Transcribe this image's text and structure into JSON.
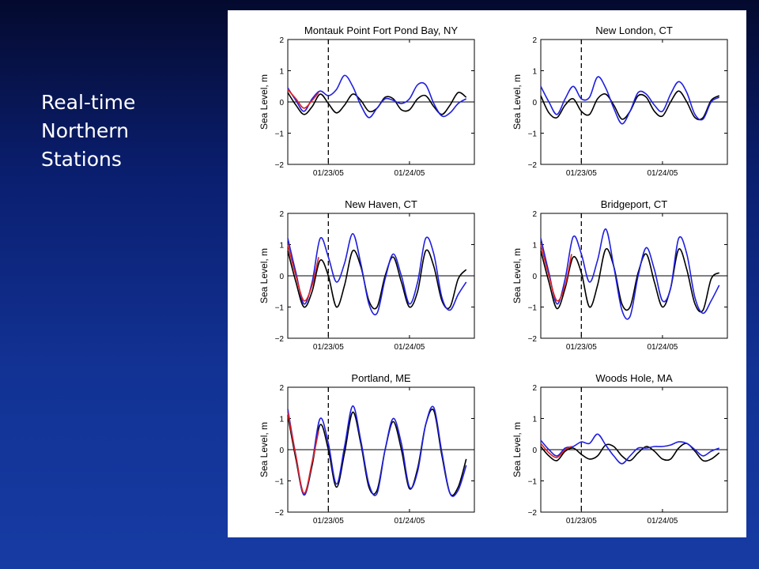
{
  "slide": {
    "title_lines": [
      "Real-time",
      "Northern",
      "Stations"
    ]
  },
  "colors": {
    "background": "#123294",
    "observed": "#1f1fe0",
    "forecast": "#e02020",
    "predicted": "#000000"
  },
  "chart_data": [
    {
      "type": "line",
      "title": "Montauk Point Fort Pond Bay, NY",
      "ylabel": "Sea Level, m",
      "ylim": [
        -2,
        2
      ],
      "yticks": [
        "2",
        "1",
        "0",
        "−1",
        "−2"
      ],
      "xticks": [
        "01/23/05",
        "01/24/05"
      ],
      "now_marker": "01/23/05",
      "series": [
        {
          "color": "#000000",
          "x": [
            0.0,
            0.1,
            0.2,
            0.3,
            0.4,
            0.5,
            0.6,
            0.7,
            0.8,
            0.9,
            1.0,
            1.1,
            1.2,
            1.3,
            1.4,
            1.5,
            1.6,
            1.7,
            1.8,
            1.9,
            2.0,
            2.1,
            2.2
          ],
          "y": [
            0.3,
            -0.1,
            -0.4,
            -0.15,
            0.25,
            -0.05,
            -0.35,
            -0.1,
            0.25,
            0.05,
            -0.3,
            -0.2,
            0.15,
            0.1,
            -0.25,
            -0.25,
            0.1,
            0.2,
            -0.15,
            -0.4,
            -0.1,
            0.3,
            0.15
          ]
        },
        {
          "color": "#1f1fe0",
          "x": [
            0.0,
            0.1,
            0.2,
            0.3,
            0.4,
            0.5,
            0.6,
            0.7,
            0.8,
            0.9,
            1.0,
            1.1,
            1.2,
            1.3,
            1.4,
            1.5,
            1.6,
            1.7,
            1.8,
            1.9,
            2.0,
            2.1,
            2.2
          ],
          "y": [
            0.45,
            0.05,
            -0.3,
            0.1,
            0.35,
            0.2,
            0.4,
            0.85,
            0.5,
            -0.1,
            -0.5,
            -0.2,
            0.1,
            0.05,
            -0.05,
            0.1,
            0.55,
            0.55,
            -0.05,
            -0.45,
            -0.35,
            -0.05,
            0.1
          ]
        },
        {
          "color": "#e02020",
          "x": [
            0.0,
            0.1,
            0.2,
            0.3,
            0.38
          ],
          "y": [
            0.4,
            0.1,
            -0.2,
            0.05,
            0.3
          ]
        }
      ]
    },
    {
      "type": "line",
      "title": "New London, CT",
      "ylabel": "Sea Level, m",
      "ylim": [
        -2,
        2
      ],
      "yticks": [
        "2",
        "1",
        "0",
        "−1",
        "−2"
      ],
      "xticks": [
        "01/23/05",
        "01/24/05"
      ],
      "now_marker": "01/23/05",
      "series": [
        {
          "color": "#000000",
          "x": [
            0.0,
            0.1,
            0.2,
            0.3,
            0.4,
            0.5,
            0.6,
            0.7,
            0.8,
            0.9,
            1.0,
            1.1,
            1.2,
            1.3,
            1.4,
            1.5,
            1.6,
            1.7,
            1.8,
            1.9,
            2.0,
            2.1,
            2.2
          ],
          "y": [
            0.2,
            -0.35,
            -0.5,
            -0.1,
            0.1,
            -0.3,
            -0.4,
            0.1,
            0.25,
            -0.1,
            -0.55,
            -0.3,
            0.2,
            0.15,
            -0.3,
            -0.45,
            0.0,
            0.35,
            0.0,
            -0.5,
            -0.5,
            0.05,
            0.2
          ]
        },
        {
          "color": "#1f1fe0",
          "x": [
            0.0,
            0.1,
            0.2,
            0.3,
            0.4,
            0.5,
            0.6,
            0.7,
            0.8,
            0.9,
            1.0,
            1.1,
            1.2,
            1.3,
            1.4,
            1.5,
            1.6,
            1.7,
            1.8,
            1.9,
            2.0,
            2.1,
            2.2
          ],
          "y": [
            0.5,
            0.0,
            -0.4,
            0.1,
            0.5,
            0.1,
            0.15,
            0.8,
            0.45,
            -0.2,
            -0.7,
            -0.3,
            0.3,
            0.25,
            -0.1,
            -0.3,
            0.25,
            0.65,
            0.3,
            -0.4,
            -0.55,
            0.0,
            0.15
          ]
        }
      ]
    },
    {
      "type": "line",
      "title": "New Haven, CT",
      "ylabel": "Sea Level, m",
      "ylim": [
        -2,
        2
      ],
      "yticks": [
        "2",
        "1",
        "0",
        "−1",
        "−2"
      ],
      "xticks": [
        "01/23/05",
        "01/24/05"
      ],
      "now_marker": "01/23/05",
      "series": [
        {
          "color": "#000000",
          "x": [
            0.0,
            0.1,
            0.2,
            0.3,
            0.4,
            0.5,
            0.6,
            0.7,
            0.8,
            0.9,
            1.0,
            1.1,
            1.2,
            1.3,
            1.4,
            1.5,
            1.6,
            1.7,
            1.8,
            1.9,
            2.0,
            2.1,
            2.2
          ],
          "y": [
            0.8,
            -0.2,
            -1.0,
            -0.5,
            0.5,
            0.0,
            -1.0,
            -0.3,
            0.8,
            0.3,
            -0.8,
            -1.0,
            0.0,
            0.6,
            -0.2,
            -1.0,
            -0.5,
            0.8,
            0.3,
            -0.8,
            -1.0,
            -0.1,
            0.2
          ]
        },
        {
          "color": "#1f1fe0",
          "x": [
            0.0,
            0.1,
            0.2,
            0.3,
            0.4,
            0.5,
            0.6,
            0.7,
            0.8,
            0.9,
            1.0,
            1.1,
            1.2,
            1.3,
            1.4,
            1.5,
            1.6,
            1.7,
            1.8,
            1.9,
            2.0,
            2.1,
            2.2
          ],
          "y": [
            1.2,
            0.1,
            -0.9,
            -0.2,
            1.2,
            0.6,
            -0.2,
            0.4,
            1.35,
            0.4,
            -0.9,
            -1.2,
            -0.1,
            0.7,
            0.0,
            -0.9,
            -0.2,
            1.2,
            0.7,
            -0.7,
            -1.1,
            -0.6,
            -0.2
          ]
        },
        {
          "color": "#e02020",
          "x": [
            0.0,
            0.1,
            0.2,
            0.3,
            0.38
          ],
          "y": [
            1.0,
            0.0,
            -0.8,
            -0.3,
            0.6
          ]
        }
      ]
    },
    {
      "type": "line",
      "title": "Bridgeport, CT",
      "ylabel": "Sea Level, m",
      "ylim": [
        -2,
        2
      ],
      "yticks": [
        "2",
        "1",
        "0",
        "−1",
        "−2"
      ],
      "xticks": [
        "01/23/05",
        "01/24/05"
      ],
      "now_marker": "01/23/05",
      "series": [
        {
          "color": "#000000",
          "x": [
            0.0,
            0.1,
            0.2,
            0.3,
            0.4,
            0.5,
            0.6,
            0.7,
            0.8,
            0.9,
            1.0,
            1.1,
            1.2,
            1.3,
            1.4,
            1.5,
            1.6,
            1.7,
            1.8,
            1.9,
            2.0,
            2.1,
            2.2
          ],
          "y": [
            0.8,
            -0.2,
            -1.05,
            -0.4,
            0.6,
            0.1,
            -1.0,
            -0.3,
            0.85,
            0.3,
            -0.9,
            -1.0,
            0.1,
            0.7,
            -0.2,
            -1.0,
            -0.4,
            0.85,
            0.2,
            -0.9,
            -1.1,
            -0.1,
            0.1
          ]
        },
        {
          "color": "#1f1fe0",
          "x": [
            0.0,
            0.1,
            0.2,
            0.3,
            0.4,
            0.5,
            0.6,
            0.7,
            0.8,
            0.9,
            1.0,
            1.1,
            1.2,
            1.3,
            1.4,
            1.5,
            1.6,
            1.7,
            1.8,
            1.9,
            2.0,
            2.1,
            2.2
          ],
          "y": [
            1.2,
            0.1,
            -0.9,
            -0.1,
            1.25,
            0.7,
            -0.2,
            0.5,
            1.5,
            0.3,
            -1.1,
            -1.3,
            0.0,
            0.9,
            0.2,
            -0.8,
            -0.4,
            1.2,
            0.7,
            -0.7,
            -1.2,
            -0.8,
            -0.3
          ]
        },
        {
          "color": "#e02020",
          "x": [
            0.0,
            0.1,
            0.2,
            0.3,
            0.38
          ],
          "y": [
            1.0,
            0.0,
            -0.8,
            -0.3,
            0.7
          ]
        }
      ]
    },
    {
      "type": "line",
      "title": "Portland, ME",
      "ylabel": "Sea Level, m",
      "ylim": [
        -2,
        2
      ],
      "yticks": [
        "2",
        "1",
        "0",
        "−1",
        "−2"
      ],
      "xticks": [
        "01/23/05",
        "01/24/05"
      ],
      "now_marker": "01/23/05",
      "series": [
        {
          "color": "#000000",
          "x": [
            0.0,
            0.1,
            0.2,
            0.3,
            0.4,
            0.5,
            0.6,
            0.7,
            0.8,
            0.9,
            1.0,
            1.1,
            1.2,
            1.3,
            1.4,
            1.5,
            1.6,
            1.7,
            1.8,
            1.9,
            2.0,
            2.1,
            2.2
          ],
          "y": [
            1.1,
            -0.3,
            -1.45,
            -0.5,
            0.8,
            0.0,
            -1.2,
            -0.1,
            1.2,
            0.2,
            -1.2,
            -1.3,
            0.0,
            0.9,
            0.0,
            -1.25,
            -0.6,
            0.8,
            1.25,
            -0.2,
            -1.4,
            -1.2,
            -0.3
          ]
        },
        {
          "color": "#1f1fe0",
          "x": [
            0.0,
            0.1,
            0.2,
            0.3,
            0.4,
            0.5,
            0.6,
            0.7,
            0.8,
            0.9,
            1.0,
            1.1,
            1.2,
            1.3,
            1.4,
            1.5,
            1.6,
            1.7,
            1.8,
            1.9,
            2.0,
            2.1,
            2.2
          ],
          "y": [
            1.3,
            -0.2,
            -1.45,
            -0.4,
            1.0,
            0.2,
            -1.1,
            0.1,
            1.4,
            0.3,
            -1.1,
            -1.4,
            0.0,
            1.0,
            0.2,
            -1.2,
            -0.7,
            0.8,
            1.35,
            -0.1,
            -1.4,
            -1.3,
            -0.5
          ]
        },
        {
          "color": "#e02020",
          "x": [
            0.0,
            0.1,
            0.2,
            0.3,
            0.38
          ],
          "y": [
            1.2,
            -0.2,
            -1.4,
            -0.4,
            0.6
          ]
        }
      ]
    },
    {
      "type": "line",
      "title": "Woods Hole, MA",
      "ylabel": "Sea Level, m",
      "ylim": [
        -2,
        2
      ],
      "yticks": [
        "2",
        "1",
        "0",
        "−1",
        "−2"
      ],
      "xticks": [
        "01/23/05",
        "01/24/05"
      ],
      "now_marker": "01/23/05",
      "series": [
        {
          "color": "#000000",
          "x": [
            0.0,
            0.1,
            0.2,
            0.3,
            0.4,
            0.5,
            0.6,
            0.7,
            0.8,
            0.9,
            1.0,
            1.1,
            1.2,
            1.3,
            1.4,
            1.5,
            1.6,
            1.7,
            1.8,
            1.9,
            2.0,
            2.1,
            2.2
          ],
          "y": [
            0.1,
            -0.2,
            -0.35,
            -0.05,
            0.05,
            -0.15,
            -0.3,
            -0.2,
            0.15,
            0.1,
            -0.2,
            -0.35,
            -0.1,
            0.1,
            -0.05,
            -0.3,
            -0.3,
            0.05,
            0.2,
            -0.05,
            -0.35,
            -0.3,
            -0.1
          ]
        },
        {
          "color": "#1f1fe0",
          "x": [
            0.0,
            0.1,
            0.2,
            0.3,
            0.4,
            0.5,
            0.6,
            0.7,
            0.8,
            0.9,
            1.0,
            1.1,
            1.2,
            1.3,
            1.4,
            1.5,
            1.6,
            1.7,
            1.8,
            1.9,
            2.0,
            2.1,
            2.2
          ],
          "y": [
            0.3,
            0.0,
            -0.2,
            0.05,
            0.1,
            0.25,
            0.2,
            0.5,
            0.15,
            -0.2,
            -0.45,
            -0.2,
            0.05,
            0.05,
            0.1,
            0.1,
            0.15,
            0.25,
            0.2,
            0.0,
            -0.2,
            -0.05,
            0.05
          ]
        },
        {
          "color": "#e02020",
          "x": [
            0.0,
            0.1,
            0.2,
            0.3,
            0.38
          ],
          "y": [
            0.2,
            -0.1,
            -0.25,
            0.0,
            0.1
          ]
        }
      ]
    }
  ]
}
